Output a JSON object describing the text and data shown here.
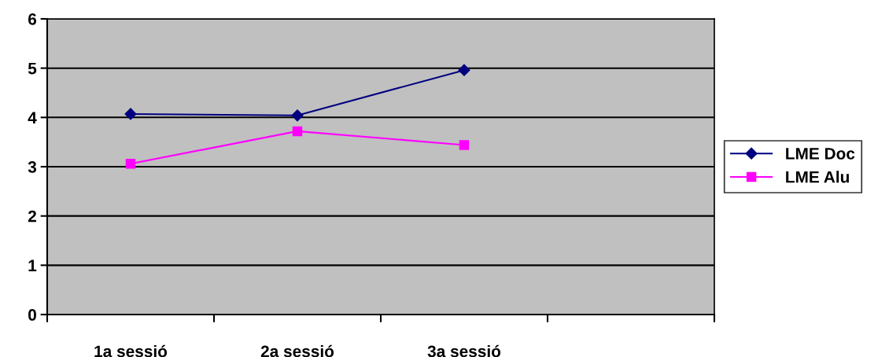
{
  "chart_data": {
    "type": "line",
    "categories": [
      "1a sessió",
      "2a sessió",
      "3a sessió",
      null
    ],
    "series": [
      {
        "name": "LME Doc",
        "color": "#000080",
        "marker": "diamond",
        "values": [
          4.07,
          4.04,
          4.96,
          null
        ]
      },
      {
        "name": "LME Alu",
        "color": "#ff00ff",
        "marker": "square",
        "values": [
          3.06,
          3.72,
          3.44,
          null
        ]
      }
    ],
    "ylim": [
      0,
      6
    ],
    "yticks": [
      0,
      1,
      2,
      3,
      4,
      5,
      6
    ],
    "grid": "y",
    "legend": "right",
    "line_style": "solid"
  }
}
